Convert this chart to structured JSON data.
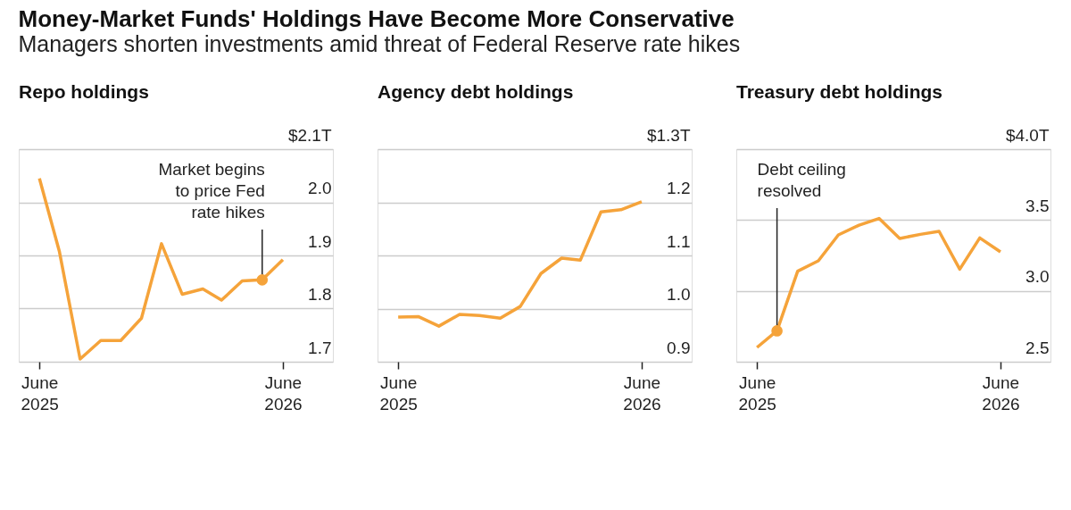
{
  "chart_data": [
    {
      "type": "other",
      "title": "Money-Market Funds' Holdings Have Become More Conservative",
      "subtitle": "Managers shorten investments amid threat of Federal Reserve rate hikes"
    },
    {
      "type": "line",
      "title": "Repo holdings",
      "x": [
        "2025-06",
        "2025-07",
        "2025-08",
        "2025-09",
        "2025-10",
        "2025-11",
        "2025-12",
        "2026-01",
        "2026-02",
        "2026-03",
        "2026-04",
        "2026-05",
        "2026-06"
      ],
      "series": [
        {
          "color": "#f5a33a",
          "values": [
            2.045,
            1.907,
            1.705,
            1.74,
            1.74,
            1.782,
            1.922,
            1.827,
            1.837,
            1.816,
            1.852,
            1.854,
            1.892
          ]
        }
      ],
      "xlim": [
        "2025-05",
        "2026-08-15"
      ],
      "xticks": [
        {
          "value": "2025-06",
          "label": "June 2025"
        },
        {
          "value": "2026-06",
          "label": "June 2026"
        }
      ],
      "ylim": [
        1.7,
        2.1
      ],
      "yticks": [
        {
          "value": 1.7,
          "label": "1.7"
        },
        {
          "value": 1.8,
          "label": "1.8"
        },
        {
          "value": 1.9,
          "label": "1.9"
        },
        {
          "value": 2.0,
          "label": "2.0"
        },
        {
          "value": 2.1,
          "label": "$2.1T"
        }
      ],
      "grid": "y",
      "line_style": "solid",
      "annotations": [
        {
          "text": "Market begins to price Fed rate hikes",
          "x": "2026-05",
          "y": 1.854
        }
      ]
    },
    {
      "type": "line",
      "title": "Agency debt holdings",
      "x": [
        "2025-06",
        "2025-07",
        "2025-08",
        "2025-09",
        "2025-10",
        "2025-11",
        "2025-12",
        "2026-01",
        "2026-02",
        "2026-03",
        "2026-04",
        "2026-05",
        "2026-06"
      ],
      "series": [
        {
          "color": "#f5a33a",
          "values": [
            0.984,
            0.985,
            0.967,
            0.989,
            0.987,
            0.982,
            1.004,
            1.066,
            1.095,
            1.091,
            1.182,
            1.186,
            1.201
          ]
        }
      ],
      "xlim": [
        "2025-05",
        "2026-08-15"
      ],
      "xticks": [
        {
          "value": "2025-06",
          "label": "June 2025"
        },
        {
          "value": "2026-06",
          "label": "June 2026"
        }
      ],
      "ylim": [
        0.9,
        1.3
      ],
      "yticks": [
        {
          "value": 0.9,
          "label": "0.9"
        },
        {
          "value": 1.0,
          "label": "1.0"
        },
        {
          "value": 1.1,
          "label": "1.1"
        },
        {
          "value": 1.2,
          "label": "1.2"
        },
        {
          "value": 1.3,
          "label": "$1.3T"
        }
      ],
      "grid": "y",
      "line_style": "solid"
    },
    {
      "type": "line",
      "title": "Treasury debt holdings",
      "x": [
        "2025-06",
        "2025-07",
        "2025-08",
        "2025-09",
        "2025-10",
        "2025-11",
        "2025-12",
        "2026-01",
        "2026-02",
        "2026-03",
        "2026-04",
        "2026-05",
        "2026-06"
      ],
      "series": [
        {
          "color": "#f5a33a",
          "values": [
            2.601,
            2.718,
            3.139,
            3.212,
            3.395,
            3.464,
            3.511,
            3.37,
            3.399,
            3.42,
            3.153,
            3.374,
            3.275
          ]
        }
      ],
      "xlim": [
        "2025-05",
        "2026-08-15"
      ],
      "xticks": [
        {
          "value": "2025-06",
          "label": "June 2025"
        },
        {
          "value": "2026-06",
          "label": "June 2026"
        }
      ],
      "ylim": [
        2.5,
        4.0
      ],
      "yticks": [
        {
          "value": 2.5,
          "label": "2.5"
        },
        {
          "value": 3.0,
          "label": "3.0"
        },
        {
          "value": 3.5,
          "label": "3.5"
        },
        {
          "value": 4.0,
          "label": "$4.0T"
        }
      ],
      "grid": "y",
      "line_style": "solid",
      "annotations": [
        {
          "text": "Debt ceiling resolved",
          "x": "2025-07",
          "y": 2.718
        }
      ]
    }
  ]
}
